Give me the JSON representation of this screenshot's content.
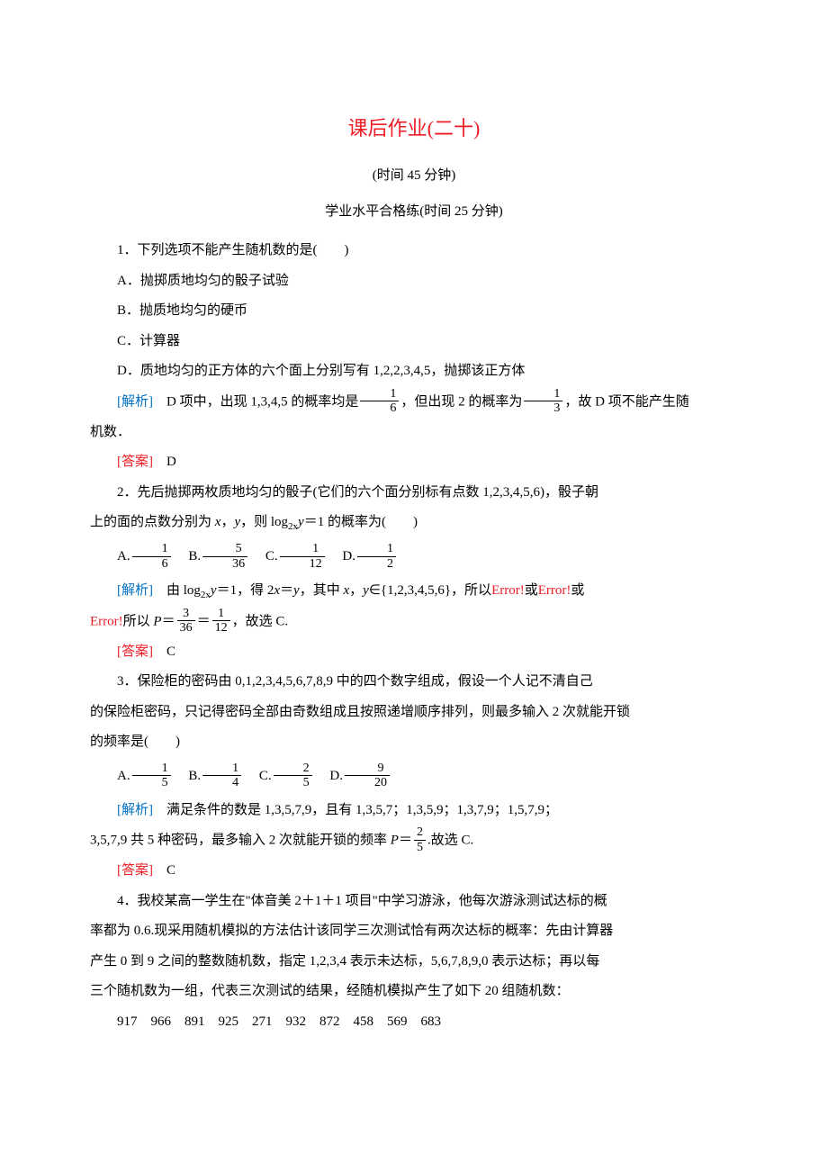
{
  "colors": {
    "title_red": "#ed1c24",
    "analysis_blue": "#0070c0",
    "answer_red": "#ed1c24",
    "text_black": "#000000",
    "background": "#ffffff"
  },
  "typography": {
    "title_fontsize": 22,
    "body_fontsize": 15,
    "line_height": 2.1,
    "font_family": "SimSun"
  },
  "title": "课后作业(二十)",
  "subtitle_1": "(时间 45 分钟)",
  "subtitle_2": "学业水平合格练(时间 25 分钟)",
  "q1": {
    "stem": "1．下列选项不能产生随机数的是(　　)",
    "opt_a": "A．抛掷质地均匀的骰子试验",
    "opt_b": "B．抛质地均匀的硬币",
    "opt_c": "C．计算器",
    "opt_d": "D．质地均匀的正方体的六个面上分别写有 1,2,2,3,4,5，抛掷该正方体",
    "analysis_label": "[解析]",
    "analysis_pre": "　D 项中，出现 1,3,4,5 的概率均是",
    "frac1_num": "1",
    "frac1_den": "6",
    "analysis_mid": "，但出现 2 的概率为",
    "frac2_num": "1",
    "frac2_den": "3",
    "analysis_post": "，故 D 项不能产生随",
    "analysis_line2": "机数．",
    "answer_label": "[答案]",
    "answer": "　D"
  },
  "q2": {
    "stem_l1": "2．先后抛掷两枚质地均匀的骰子(它们的六个面分别标有点数 1,2,3,4,5,6)，骰子朝",
    "stem_l2_pre": "上的面的点数分别为 ",
    "stem_l2_x": "x",
    "stem_l2_mid": "，",
    "stem_l2_y": "y",
    "stem_l2_post": "，则 log",
    "stem_l2_sub": "2x",
    "stem_l2_eq": "y",
    "stem_l2_end": "＝1 的概率为(　　)",
    "a_label": "A.",
    "a_num": "1",
    "a_den": "6",
    "b_label": "B.",
    "b_num": "5",
    "b_den": "36",
    "c_label": "C.",
    "c_num": "1",
    "c_den": "12",
    "d_label": "D.",
    "d_num": "1",
    "d_den": "2",
    "analysis_label": "[解析]",
    "analysis_l1_pre": "　由 log",
    "analysis_l1_sub": "2x",
    "analysis_l1_y": "y",
    "analysis_l1_mid": "＝1，得 2",
    "analysis_l1_x": "x",
    "analysis_l1_eq": "＝",
    "analysis_l1_y2": "y",
    "analysis_l1_mid2": "，其中 ",
    "analysis_l1_x2": "x",
    "analysis_l1_c": "，",
    "analysis_l1_y3": "y",
    "analysis_l1_set": "∈{1,2,3,4,5,6}，所以",
    "analysis_l1_err1": "Error!",
    "analysis_l1_or1": "或",
    "analysis_l1_err2": "Error!",
    "analysis_l1_or2": "或",
    "analysis_l2_err": "Error!",
    "analysis_l2_pre": "所以 ",
    "analysis_l2_P": "P",
    "analysis_l2_eq": "＝",
    "frac_p1_num": "3",
    "frac_p1_den": "36",
    "analysis_l2_eq2": "＝",
    "frac_p2_num": "1",
    "frac_p2_den": "12",
    "analysis_l2_end": "，故选 C.",
    "answer_label": "[答案]",
    "answer": "　C"
  },
  "q3": {
    "stem_l1": "3．保险柜的密码由 0,1,2,3,4,5,6,7,8,9 中的四个数字组成，假设一个人记不清自己",
    "stem_l2": "的保险柜密码，只记得密码全部由奇数组成且按照递增顺序排列，则最多输入 2 次就能开锁",
    "stem_l3": "的频率是(　　)",
    "a_label": "A.",
    "a_num": "1",
    "a_den": "5",
    "b_label": "B.",
    "b_num": "1",
    "b_den": "4",
    "c_label": "C.",
    "c_num": "2",
    "c_den": "5",
    "d_label": "D.",
    "d_num": "9",
    "d_den": "20",
    "analysis_label": "[解析]",
    "analysis_l1": "　满足条件的数是 1,3,5,7,9，且有 1,3,5,7；1,3,5,9；1,3,7,9；1,5,7,9；",
    "analysis_l2_pre": "3,5,7,9 共 5 种密码，最多输入 2 次就能开锁的频率 ",
    "analysis_l2_P": "P",
    "analysis_l2_eq": "＝",
    "frac_p_num": "2",
    "frac_p_den": "5",
    "analysis_l2_end": ".故选 C.",
    "answer_label": "[答案]",
    "answer": "　C"
  },
  "q4": {
    "stem_l1": "4．我校某高一学生在\"体音美 2＋1＋1 项目\"中学习游泳，他每次游泳测试达标的概",
    "stem_l2": "率都为 0.6.现采用随机模拟的方法估计该同学三次测试恰有两次达标的概率：先由计算器",
    "stem_l3": "产生 0 到 9 之间的整数随机数，指定 1,2,3,4 表示未达标，5,6,7,8,9,0 表示达标；再以每",
    "stem_l4": "三个随机数为一组，代表三次测试的结果，经随机模拟产生了如下 20 组随机数：",
    "numbers": "917　966　891　925　271　932　872　458　569　683"
  }
}
